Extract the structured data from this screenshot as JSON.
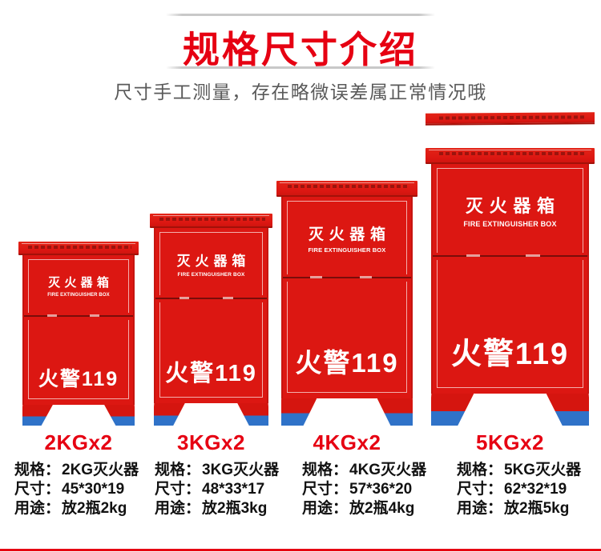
{
  "header": {
    "title": "规格尺寸介绍",
    "subtitle": "尺寸手工测量，存在略微误差属正常情况哦"
  },
  "box_front": {
    "title_cn": "灭火器箱",
    "title_en": "FIRE EXTINGUISHER BOX",
    "alarm_text": "火警119"
  },
  "products": [
    {
      "size_label": "2KGx2",
      "spec_key": "规格：",
      "spec_val": "2KG灭火器",
      "dim_key": "尺寸：",
      "dim_val": "45*30*19",
      "use_key": "用途：",
      "use_val": "放2瓶2kg"
    },
    {
      "size_label": "3KGx2",
      "spec_key": "规格：",
      "spec_val": "3KG灭火器",
      "dim_key": "尺寸：",
      "dim_val": "48*33*17",
      "use_key": "用途：",
      "use_val": "放2瓶3kg"
    },
    {
      "size_label": "4KGx2",
      "spec_key": "规格：",
      "spec_val": "4KG灭火器",
      "dim_key": "尺寸：",
      "dim_val": "57*36*20",
      "use_key": "用途：",
      "use_val": "放2瓶4kg"
    },
    {
      "size_label": "5KGx2",
      "spec_key": "规格：",
      "spec_val": "5KG灭火器",
      "dim_key": "尺寸：",
      "dim_val": "62*32*19",
      "use_key": "用途：",
      "use_val": "放2瓶5kg"
    }
  ],
  "colors": {
    "title_red": "#e60012",
    "label_red": "#e60012",
    "box_red": "#dc1712",
    "box_red_deep": "#a31109",
    "lid_print": "#8f120c",
    "foot_blue": "#2f72c8",
    "spec_text": "#111111",
    "subtitle_gray": "#595959",
    "divider_gray": "#c8c8c8"
  }
}
